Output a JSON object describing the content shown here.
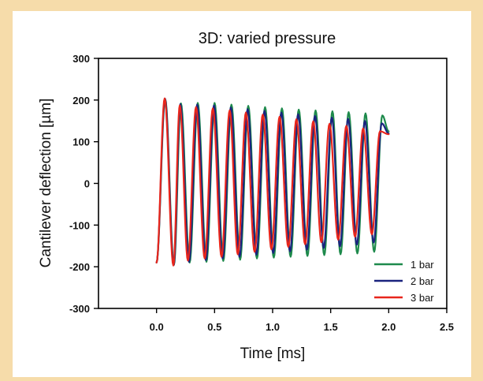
{
  "chart_data": {
    "type": "line",
    "title": "3D: varied pressure",
    "xlabel": "Time [ms]",
    "ylabel": "Cantilever deflection [µm]",
    "xlim": [
      -0.5,
      2.5
    ],
    "ylim": [
      -300,
      300
    ],
    "xticks": [
      0.0,
      0.5,
      1.0,
      1.5,
      2.0,
      2.5
    ],
    "xtick_labels": [
      "0.0",
      "0.5",
      "1.0",
      "1.5",
      "2.0",
      "2.5"
    ],
    "yticks": [
      -300,
      -200,
      -100,
      0,
      100,
      200,
      300
    ],
    "ytick_labels": [
      "-300",
      "-200",
      "-100",
      "0",
      "100",
      "200",
      "300"
    ],
    "grid": false,
    "legend_position": "bottom-right",
    "x_range": [
      0.0,
      2.0
    ],
    "series": [
      {
        "name": "1 bar",
        "color": "#1e8a4c",
        "start": -190,
        "peaks_x": [
          0.075,
          0.21,
          0.355,
          0.5,
          0.645,
          0.79,
          0.935,
          1.08,
          1.225,
          1.37,
          1.515,
          1.655,
          1.8,
          1.945
        ],
        "peaks_y": [
          202,
          192,
          193,
          193,
          189,
          186,
          183,
          180,
          177,
          175,
          173,
          171,
          168,
          163
        ],
        "troughs_x": [
          0.15,
          0.285,
          0.43,
          0.575,
          0.72,
          0.865,
          1.01,
          1.155,
          1.3,
          1.445,
          1.585,
          1.73,
          1.875
        ],
        "troughs_y": [
          -195,
          -190,
          -188,
          -186,
          -183,
          -180,
          -178,
          -176,
          -174,
          -172,
          -170,
          -168,
          -164
        ],
        "end": 125
      },
      {
        "name": "2 bar",
        "color": "#1a237e",
        "start": -190,
        "peaks_x": [
          0.073,
          0.205,
          0.35,
          0.495,
          0.64,
          0.785,
          0.93,
          1.075,
          1.22,
          1.365,
          1.51,
          1.65,
          1.795,
          1.94
        ],
        "peaks_y": [
          203,
          190,
          189,
          187,
          182,
          178,
          174,
          170,
          166,
          162,
          158,
          155,
          150,
          144
        ],
        "troughs_x": [
          0.148,
          0.28,
          0.425,
          0.57,
          0.715,
          0.86,
          1.005,
          1.15,
          1.295,
          1.44,
          1.58,
          1.725,
          1.87
        ],
        "troughs_y": [
          -196,
          -188,
          -184,
          -180,
          -176,
          -171,
          -167,
          -163,
          -159,
          -155,
          -151,
          -147,
          -142
        ],
        "end": 120
      },
      {
        "name": "3 bar",
        "color": "#e8261c",
        "start": -190,
        "peaks_x": [
          0.07,
          0.2,
          0.34,
          0.485,
          0.63,
          0.77,
          0.915,
          1.06,
          1.205,
          1.35,
          1.49,
          1.635,
          1.78,
          1.925
        ],
        "peaks_y": [
          204,
          187,
          183,
          180,
          175,
          170,
          165,
          160,
          154,
          149,
          143,
          138,
          132,
          125
        ],
        "troughs_x": [
          0.145,
          0.27,
          0.415,
          0.56,
          0.7,
          0.845,
          0.99,
          1.135,
          1.28,
          1.42,
          1.565,
          1.71,
          1.855
        ],
        "troughs_y": [
          -197,
          -185,
          -180,
          -176,
          -170,
          -164,
          -158,
          -152,
          -146,
          -141,
          -135,
          -128,
          -122
        ],
        "end": 118
      }
    ]
  }
}
